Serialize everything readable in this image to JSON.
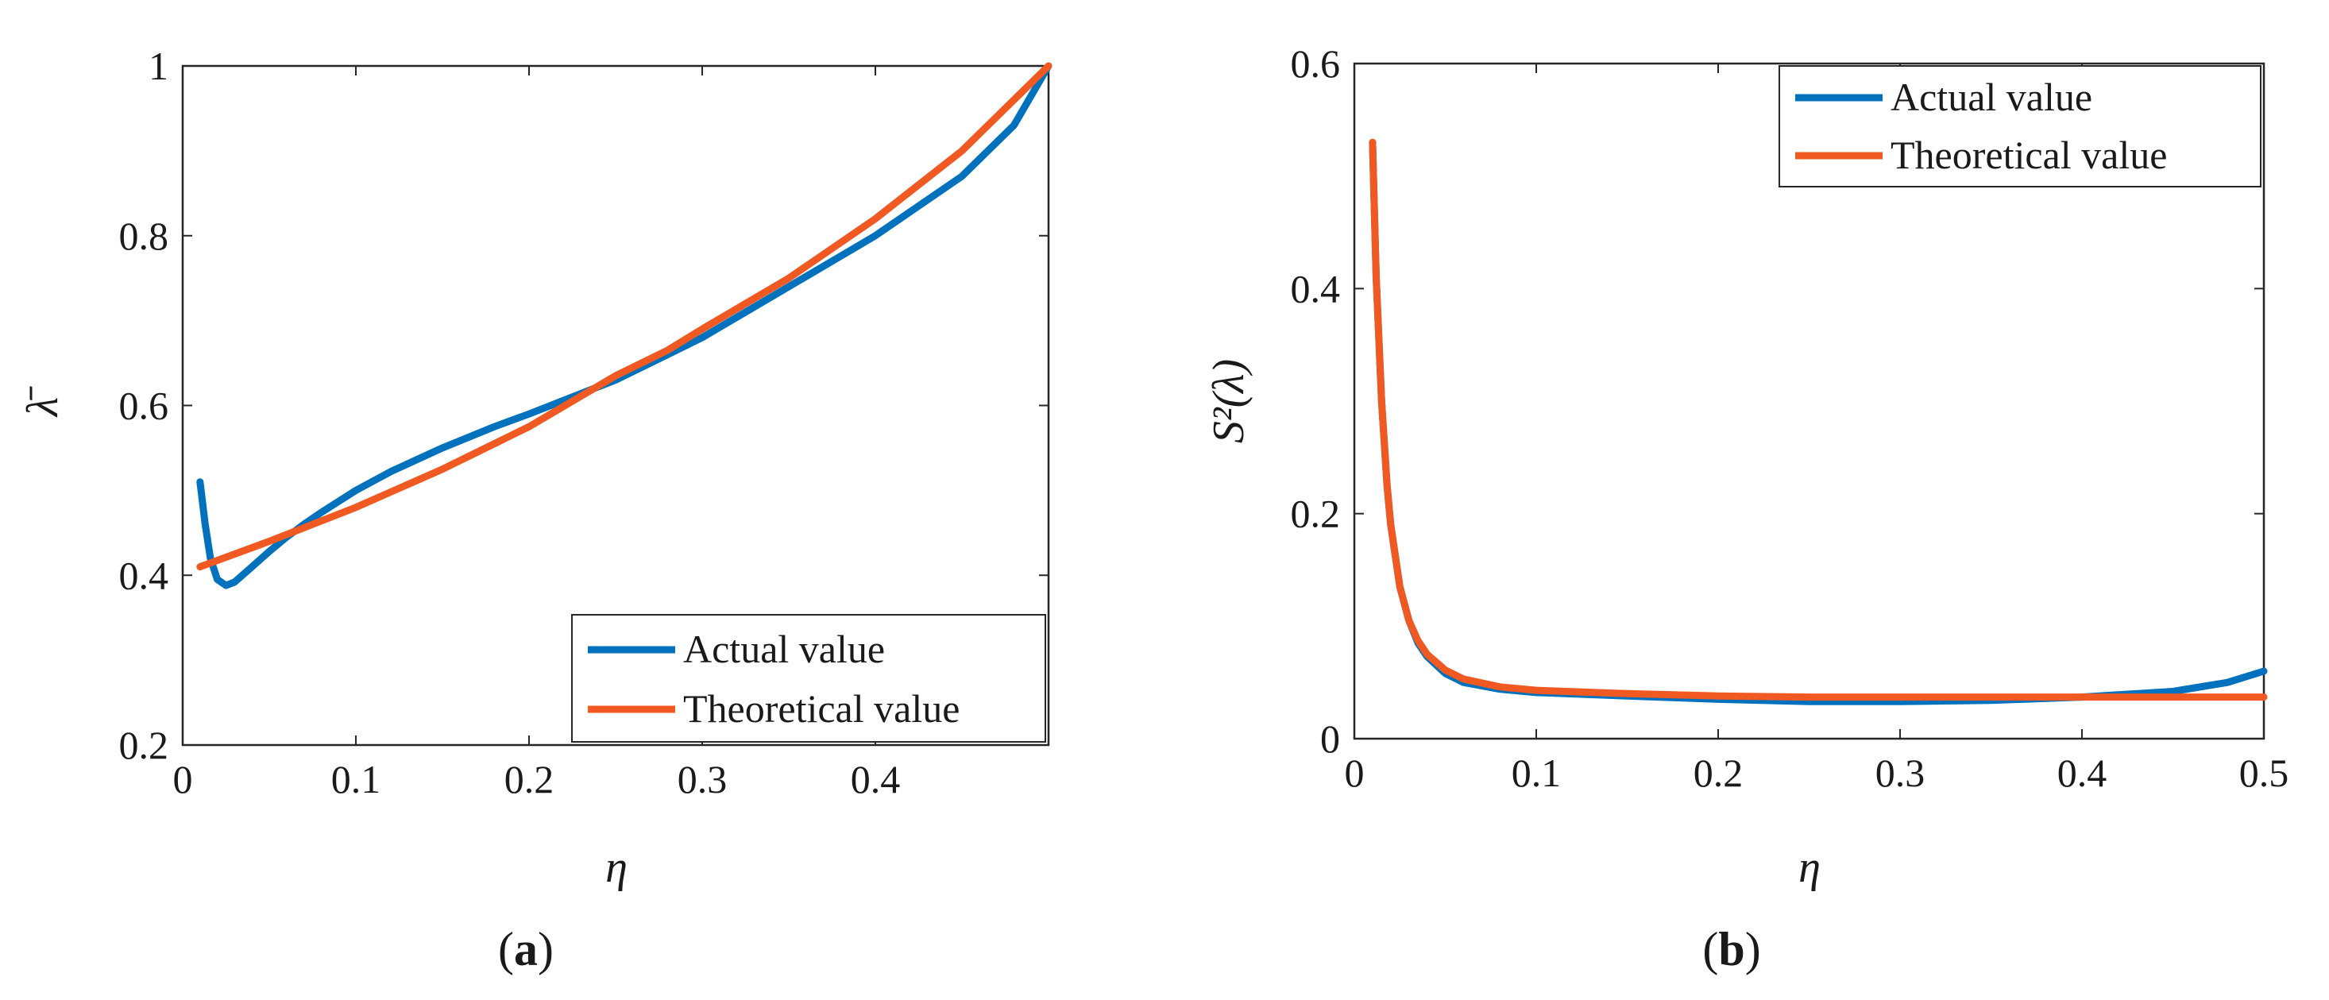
{
  "colors": {
    "actual": "#0072BD",
    "theoretical": "#F05A22",
    "axis": "#262626"
  },
  "chart_data": [
    {
      "panel": "a",
      "panel_label": "(a)",
      "type": "line",
      "xlabel": "η",
      "ylabel": "λ̄",
      "xlim": [
        0,
        0.5
      ],
      "ylim": [
        0.2,
        1.0
      ],
      "xticks": [
        0,
        0.1,
        0.2,
        0.3,
        0.4
      ],
      "xtick_labels": [
        "0",
        "0.1",
        "0.2",
        "0.3",
        "0.4"
      ],
      "yticks": [
        0.2,
        0.4,
        0.6,
        0.8,
        1.0
      ],
      "ytick_labels": [
        "0.2",
        "0.4",
        "0.6",
        "0.8",
        "1"
      ],
      "legend_position": "bottom-right",
      "series": [
        {
          "name": "Actual value",
          "color_key": "actual",
          "x": [
            0.01,
            0.013,
            0.016,
            0.02,
            0.025,
            0.03,
            0.04,
            0.05,
            0.06,
            0.07,
            0.08,
            0.1,
            0.12,
            0.15,
            0.18,
            0.2,
            0.25,
            0.28,
            0.3,
            0.35,
            0.4,
            0.45,
            0.48,
            0.5
          ],
          "y": [
            0.51,
            0.46,
            0.42,
            0.395,
            0.388,
            0.392,
            0.41,
            0.428,
            0.445,
            0.46,
            0.474,
            0.5,
            0.522,
            0.55,
            0.575,
            0.59,
            0.63,
            0.66,
            0.68,
            0.74,
            0.8,
            0.87,
            0.93,
            1.0
          ]
        },
        {
          "name": "Theoretical value",
          "color_key": "theoretical",
          "x": [
            0.01,
            0.05,
            0.1,
            0.15,
            0.2,
            0.25,
            0.28,
            0.3,
            0.35,
            0.4,
            0.45,
            0.5
          ],
          "y": [
            0.41,
            0.44,
            0.48,
            0.525,
            0.575,
            0.635,
            0.665,
            0.69,
            0.75,
            0.82,
            0.9,
            1.0
          ]
        }
      ]
    },
    {
      "panel": "b",
      "panel_label": "(b)",
      "type": "line",
      "xlabel": "η",
      "ylabel": "S²(λ)",
      "xlim": [
        0,
        0.5
      ],
      "ylim": [
        0,
        0.6
      ],
      "xticks": [
        0,
        0.1,
        0.2,
        0.3,
        0.4,
        0.5
      ],
      "xtick_labels": [
        "0",
        "0.1",
        "0.2",
        "0.3",
        "0.4",
        "0.5"
      ],
      "yticks": [
        0,
        0.2,
        0.4,
        0.6
      ],
      "ytick_labels": [
        "0",
        "0.2",
        "0.4",
        "0.6"
      ],
      "legend_position": "top-right",
      "series": [
        {
          "name": "Actual value",
          "color_key": "actual",
          "x": [
            0.01,
            0.012,
            0.015,
            0.018,
            0.02,
            0.025,
            0.03,
            0.035,
            0.04,
            0.05,
            0.06,
            0.08,
            0.1,
            0.15,
            0.2,
            0.25,
            0.3,
            0.35,
            0.4,
            0.45,
            0.48,
            0.5
          ],
          "y": [
            0.53,
            0.41,
            0.3,
            0.225,
            0.19,
            0.135,
            0.105,
            0.085,
            0.073,
            0.058,
            0.05,
            0.044,
            0.041,
            0.038,
            0.035,
            0.033,
            0.033,
            0.034,
            0.037,
            0.042,
            0.05,
            0.06
          ]
        },
        {
          "name": "Theoretical value",
          "color_key": "theoretical",
          "x": [
            0.01,
            0.012,
            0.015,
            0.018,
            0.02,
            0.025,
            0.03,
            0.035,
            0.04,
            0.05,
            0.06,
            0.08,
            0.1,
            0.15,
            0.2,
            0.25,
            0.3,
            0.35,
            0.4,
            0.45,
            0.5
          ],
          "y": [
            0.53,
            0.41,
            0.3,
            0.225,
            0.19,
            0.135,
            0.105,
            0.087,
            0.075,
            0.061,
            0.053,
            0.046,
            0.043,
            0.04,
            0.038,
            0.037,
            0.037,
            0.037,
            0.037,
            0.037,
            0.037
          ]
        }
      ]
    }
  ]
}
